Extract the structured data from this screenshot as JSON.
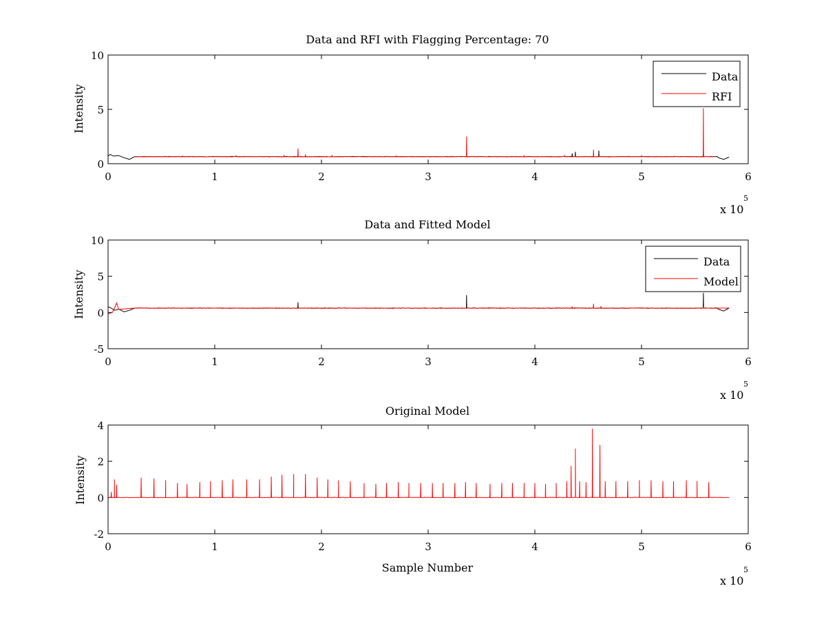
{
  "chart_data": [
    {
      "type": "line",
      "title": "Data and RFI with Flagging Percentage: 70",
      "xlabel": "",
      "ylabel": "Intensity",
      "xlim": [
        0,
        6
      ],
      "ylim": [
        0,
        10
      ],
      "x_ticks": [
        0,
        1,
        2,
        3,
        4,
        5,
        6
      ],
      "y_ticks": [
        0,
        5,
        10
      ],
      "x_multiplier_text": "x 10",
      "x_multiplier_exp": "5",
      "legend": {
        "location": "top-right",
        "entries": [
          "Data",
          "RFI"
        ]
      },
      "series": [
        {
          "name": "Data",
          "color": "#000000",
          "baseline": 0.65,
          "segment": [
            0,
            5.82
          ],
          "points": [
            [
              0,
              0.7
            ],
            [
              0.02,
              0.85
            ],
            [
              0.05,
              0.7
            ],
            [
              0.1,
              0.75
            ],
            [
              0.15,
              0.55
            ],
            [
              0.2,
              0.4
            ],
            [
              0.25,
              0.65
            ]
          ],
          "end_points": [
            [
              5.72,
              0.55
            ],
            [
              5.77,
              0.4
            ],
            [
              5.82,
              0.6
            ]
          ],
          "spikes": [
            [
              4.35,
              0.95
            ],
            [
              4.38,
              1.1
            ],
            [
              4.6,
              1.2
            ],
            [
              5.58,
              1.2
            ]
          ]
        },
        {
          "name": "RFI",
          "color": "#ff0000",
          "baseline": 0.65,
          "segment": [
            0.25,
            5.68
          ],
          "spikes": [
            [
              0.7,
              0.75
            ],
            [
              1.2,
              0.78
            ],
            [
              1.65,
              0.8
            ],
            [
              1.78,
              1.4
            ],
            [
              1.85,
              0.85
            ],
            [
              2.1,
              0.8
            ],
            [
              2.7,
              0.75
            ],
            [
              3.36,
              2.5
            ],
            [
              3.9,
              0.78
            ],
            [
              4.28,
              0.8
            ],
            [
              4.55,
              1.3
            ],
            [
              5.0,
              0.78
            ],
            [
              5.58,
              5.1
            ]
          ]
        }
      ]
    },
    {
      "type": "line",
      "title": "Data and Fitted Model",
      "xlabel": "",
      "ylabel": "Intensity",
      "xlim": [
        0,
        6
      ],
      "ylim": [
        -5,
        10
      ],
      "x_ticks": [
        0,
        1,
        2,
        3,
        4,
        5,
        6
      ],
      "y_ticks": [
        -5,
        0,
        5,
        10
      ],
      "x_multiplier_text": "x 10",
      "x_multiplier_exp": "5",
      "legend": {
        "location": "top-right",
        "entries": [
          "Data",
          "Model"
        ]
      },
      "series": [
        {
          "name": "Data",
          "color": "#000000",
          "baseline": 0.6,
          "segment": [
            0,
            5.82
          ],
          "points": [
            [
              0,
              0.8
            ],
            [
              0.03,
              0.6
            ],
            [
              0.06,
              0.3
            ],
            [
              0.1,
              0.45
            ],
            [
              0.15,
              0.1
            ],
            [
              0.2,
              0.3
            ],
            [
              0.25,
              0.6
            ]
          ],
          "end_points": [
            [
              5.72,
              0.45
            ],
            [
              5.77,
              0.2
            ],
            [
              5.82,
              0.6
            ]
          ],
          "spikes": [
            [
              1.78,
              1.4
            ],
            [
              3.36,
              2.4
            ],
            [
              5.58,
              2.7
            ]
          ]
        },
        {
          "name": "Model",
          "color": "#ff0000",
          "baseline": 0.6,
          "segment": [
            0,
            5.82
          ],
          "points": [
            [
              0,
              -0.2
            ],
            [
              0.04,
              0.0
            ],
            [
              0.06,
              0.6
            ],
            [
              0.08,
              1.3
            ],
            [
              0.1,
              0.4
            ],
            [
              0.15,
              0.5
            ],
            [
              0.2,
              0.55
            ]
          ],
          "spikes": [
            [
              4.35,
              0.85
            ],
            [
              4.55,
              1.2
            ],
            [
              4.62,
              0.9
            ],
            [
              5.58,
              0.8
            ]
          ]
        }
      ]
    },
    {
      "type": "line",
      "title": "Original Model",
      "xlabel": "Sample Number",
      "ylabel": "Intensity",
      "xlim": [
        0,
        6
      ],
      "ylim": [
        -2,
        4
      ],
      "x_ticks": [
        0,
        1,
        2,
        3,
        4,
        5,
        6
      ],
      "y_ticks": [
        -2,
        0,
        2,
        4
      ],
      "x_multiplier_text": "x 10",
      "x_multiplier_exp": "5",
      "series": [
        {
          "color": "#ff0000",
          "baseline": 0,
          "segment": [
            0,
            5.82
          ],
          "spikes": [
            [
              0.03,
              0.3
            ],
            [
              0.06,
              1.0
            ],
            [
              0.08,
              0.7
            ],
            [
              0.31,
              1.1
            ],
            [
              0.43,
              1.05
            ],
            [
              0.54,
              0.95
            ],
            [
              0.65,
              0.8
            ],
            [
              0.74,
              0.75
            ],
            [
              0.86,
              0.85
            ],
            [
              0.96,
              0.9
            ],
            [
              1.07,
              0.95
            ],
            [
              1.17,
              1.0
            ],
            [
              1.3,
              1.0
            ],
            [
              1.42,
              1.0
            ],
            [
              1.53,
              1.15
            ],
            [
              1.63,
              1.25
            ],
            [
              1.74,
              1.3
            ],
            [
              1.85,
              1.3
            ],
            [
              1.96,
              1.1
            ],
            [
              2.06,
              1.0
            ],
            [
              2.16,
              0.95
            ],
            [
              2.27,
              0.9
            ],
            [
              2.4,
              0.8
            ],
            [
              2.51,
              0.75
            ],
            [
              2.61,
              0.8
            ],
            [
              2.72,
              0.85
            ],
            [
              2.82,
              0.8
            ],
            [
              2.93,
              0.8
            ],
            [
              3.04,
              0.8
            ],
            [
              3.14,
              0.8
            ],
            [
              3.25,
              0.8
            ],
            [
              3.35,
              0.85
            ],
            [
              3.45,
              0.8
            ],
            [
              3.58,
              0.75
            ],
            [
              3.69,
              0.8
            ],
            [
              3.79,
              0.8
            ],
            [
              3.9,
              0.8
            ],
            [
              4.0,
              0.8
            ],
            [
              4.1,
              0.75
            ],
            [
              4.2,
              0.8
            ],
            [
              4.3,
              0.9
            ],
            [
              4.34,
              1.75
            ],
            [
              4.38,
              2.7
            ],
            [
              4.42,
              0.9
            ],
            [
              4.48,
              0.85
            ],
            [
              4.54,
              3.8
            ],
            [
              4.61,
              2.9
            ],
            [
              4.66,
              0.9
            ],
            [
              4.76,
              0.9
            ],
            [
              4.87,
              0.9
            ],
            [
              4.98,
              0.95
            ],
            [
              5.09,
              0.95
            ],
            [
              5.2,
              0.9
            ],
            [
              5.3,
              0.9
            ],
            [
              5.42,
              0.95
            ],
            [
              5.52,
              0.9
            ],
            [
              5.63,
              0.85
            ]
          ]
        }
      ]
    }
  ]
}
